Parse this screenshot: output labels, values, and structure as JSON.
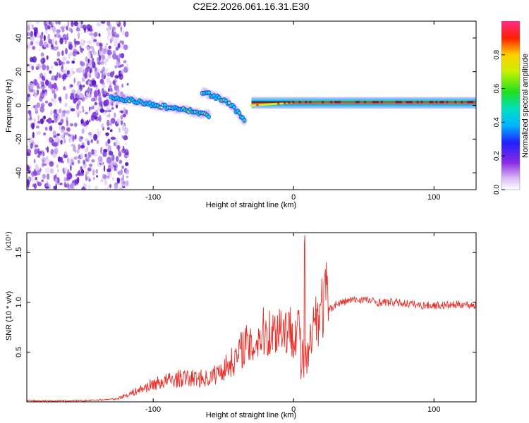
{
  "title": "C2E2.2026.061.16.31.E30",
  "chart_data": [
    {
      "type": "heatmap",
      "xlabel": "Height of straight line (km)",
      "ylabel": "Frequency (Hz)",
      "xlim": [
        -190,
        130
      ],
      "ylim": [
        -50,
        50
      ],
      "xticks": [
        -100,
        0,
        100
      ],
      "xtick_labels": [
        "-100",
        "0",
        "100"
      ],
      "yticks": [
        -40,
        -20,
        0,
        20,
        40
      ],
      "ytick_labels": [
        "-40",
        "-20",
        "0",
        "20",
        "40"
      ],
      "colorbar": {
        "label": "Normalized spectral amplitude",
        "range": [
          0,
          1
        ],
        "ticks": [
          0.0,
          0.2,
          0.4,
          0.6,
          0.8
        ],
        "tick_labels": [
          "0.0",
          "0.2",
          "0.4",
          "0.6",
          "0.8"
        ]
      },
      "features": [
        {
          "name": "broadband noise",
          "x_range": [
            -190,
            -122
          ],
          "freq_range": [
            -50,
            50
          ],
          "amplitude": 0.15
        },
        {
          "name": "descending streak A",
          "points": [
            [
              -130,
              5
            ],
            [
              -110,
              2
            ],
            [
              -90,
              -1
            ],
            [
              -75,
              -3
            ],
            [
              -60,
              -6
            ]
          ],
          "amplitude": 0.5
        },
        {
          "name": "descending streak B",
          "points": [
            [
              -65,
              8
            ],
            [
              -55,
              5
            ],
            [
              -45,
              1
            ],
            [
              -38,
              -6
            ],
            [
              -34,
              -10
            ]
          ],
          "amplitude": 0.55
        },
        {
          "name": "flat streak",
          "points": [
            [
              -30,
              0
            ],
            [
              -10,
              1
            ],
            [
              0,
              2
            ],
            [
              40,
              2
            ],
            [
              80,
              2
            ],
            [
              130,
              2
            ]
          ],
          "amplitude": 0.9
        }
      ]
    },
    {
      "type": "line",
      "xlabel": "Height of straight line (km)",
      "ylabel": "SNR (10 * v/v)",
      "y_multiplier": "(x10⁴)",
      "xlim": [
        -190,
        130
      ],
      "ylim": [
        0,
        1.7
      ],
      "xticks": [
        -100,
        0,
        100
      ],
      "xtick_labels": [
        "-100",
        "0",
        "100"
      ],
      "yticks": [
        0.5,
        1.0,
        1.5
      ],
      "ytick_labels": [
        "0.5",
        "1.0",
        "1.5"
      ],
      "series": [
        {
          "name": "SNR",
          "color": "#e8302a",
          "x": [
            -190,
            -150,
            -125,
            -110,
            -100,
            -90,
            -80,
            -70,
            -60,
            -50,
            -40,
            -35,
            -30,
            -25,
            -20,
            -15,
            -10,
            -5,
            0,
            5,
            8,
            10,
            15,
            20,
            25,
            30,
            40,
            50,
            60,
            70,
            80,
            90,
            100,
            110,
            120,
            130
          ],
          "y": [
            0.01,
            0.01,
            0.03,
            0.1,
            0.15,
            0.18,
            0.2,
            0.2,
            0.2,
            0.28,
            0.38,
            0.5,
            0.45,
            0.55,
            0.6,
            0.58,
            0.65,
            0.62,
            0.6,
            0.65,
            1.7,
            0.62,
            0.7,
            0.8,
            0.92,
            0.98,
            1.02,
            1.03,
            1.0,
            1.0,
            0.99,
            0.97,
            0.97,
            0.97,
            0.98,
            0.97
          ]
        }
      ]
    }
  ]
}
